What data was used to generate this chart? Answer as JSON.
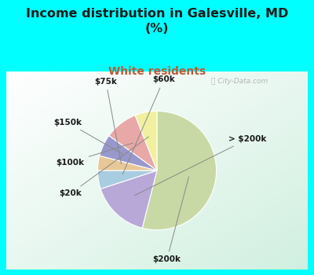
{
  "title": "Income distribution in Galesville, MD\n(%)",
  "subtitle": "White residents",
  "title_color": "#1a1a1a",
  "subtitle_color": "#b85c38",
  "bg_color_outer": "#00ffff",
  "watermark": "City-Data.com",
  "slices": [
    {
      "label": "$200k",
      "value": 54,
      "color": "#c8d9a5"
    },
    {
      "label": "> $200k",
      "value": 16,
      "color": "#b8a8d8"
    },
    {
      "label": "$60k",
      "value": 5,
      "color": "#a8cce0"
    },
    {
      "label": "$75k",
      "value": 4,
      "color": "#e8c898"
    },
    {
      "label": "$150k",
      "value": 6,
      "color": "#9898cc"
    },
    {
      "label": "$100k",
      "value": 9,
      "color": "#e8a8a8"
    },
    {
      "label": "$20k",
      "value": 6,
      "color": "#f0f0a0"
    }
  ],
  "startangle": 90,
  "figsize": [
    4.0,
    3.5
  ],
  "dpi": 100
}
